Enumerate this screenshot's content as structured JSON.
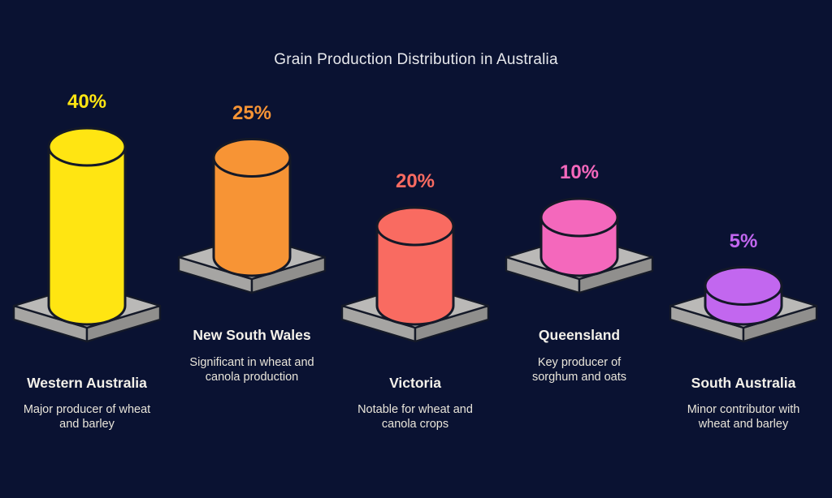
{
  "palette": {
    "background": "#0a1232",
    "title_text": "#e7e8ec",
    "name_text": "#f4f1ea",
    "description_text": "#e9e5da",
    "outline": "#141928",
    "platform_top": "#bab9b7",
    "platform_left": "#a6a5a3",
    "platform_right": "#908f8d"
  },
  "chart_data": {
    "type": "bar",
    "title": "Grain Production Distribution in Australia",
    "unit": "percent",
    "legend_position": "none",
    "grid": "off",
    "categories": [
      "Western Australia",
      "New South Wales",
      "Victoria",
      "Queensland",
      "South Australia"
    ],
    "values": [
      40,
      25,
      20,
      10,
      5
    ],
    "regions": [
      {
        "name": "Western Australia",
        "value": 40,
        "percent_label": "40%",
        "color": "#ffe512",
        "description_line1": "Major producer of wheat",
        "description_line2": "and barley"
      },
      {
        "name": "New South Wales",
        "value": 25,
        "percent_label": "25%",
        "color": "#f79435",
        "description_line1": "Significant in wheat and",
        "description_line2": "canola production"
      },
      {
        "name": "Victoria",
        "value": 20,
        "percent_label": "20%",
        "color": "#f96b61",
        "description_line1": "Notable for wheat and",
        "description_line2": "canola crops"
      },
      {
        "name": "Queensland",
        "value": 10,
        "percent_label": "10%",
        "color": "#f468bc",
        "description_line1": "Key producer of",
        "description_line2": "sorghum and oats"
      },
      {
        "name": "South Australia",
        "value": 5,
        "percent_label": "5%",
        "color": "#c267ef",
        "description_line1": "Minor contributor with",
        "description_line2": "wheat and barley"
      }
    ]
  }
}
